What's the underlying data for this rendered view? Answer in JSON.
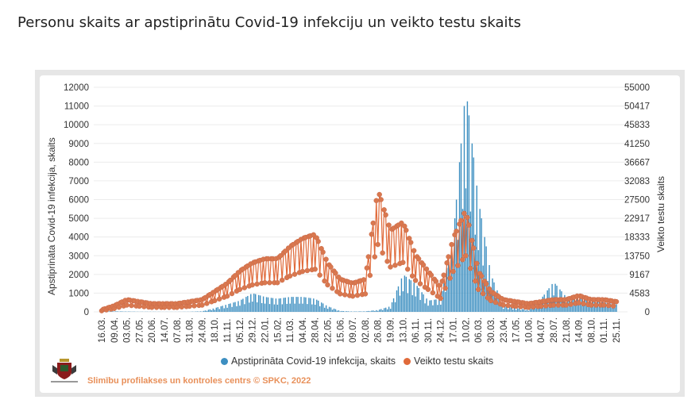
{
  "title": "Personu skaits ar apstiprinātu Covid-19 infekciju un veikto testu skaits",
  "logo_text": "Slimību profilakses un kontroles centrs",
  "credit": "Slimību profilakses un kontroles centrs © SPKC, 2022",
  "colors": {
    "cases": "#3d8fc1",
    "tests": "#e06a3a"
  },
  "chart_data": {
    "type": "bar+line",
    "title": "Personu skaits ar apstiprinātu Covid-19 infekciju un veikto testu skaits",
    "ylabel": "Apstiprināta Covid-19 infekcija, skaits",
    "y2label": "Veikto testu skaits",
    "ylim": [
      0,
      12000
    ],
    "y2lim": [
      0,
      55000
    ],
    "yticks": [
      "0",
      "1000",
      "2000",
      "3000",
      "4000",
      "5000",
      "6000",
      "7000",
      "8000",
      "9000",
      "10000",
      "11000",
      "12000"
    ],
    "y2ticks": [
      "0",
      "4583",
      "9167",
      "13750",
      "18333",
      "22917",
      "27500",
      "32083",
      "36667",
      "41250",
      "45833",
      "50417",
      "55000"
    ],
    "grid": true,
    "legend": "bottom",
    "categories": [
      "16.03.",
      "09.04.",
      "03.05.",
      "27.05.",
      "20.06.",
      "14.07.",
      "07.08.",
      "31.08.",
      "24.09.",
      "18.10.",
      "11.11.",
      "05.12.",
      "29.12.",
      "22.01.",
      "15.02.",
      "11.03.",
      "04.04.",
      "28.04.",
      "22.05.",
      "15.06.",
      "09.07.",
      "02.08.",
      "26.08.",
      "19.09.",
      "13.10.",
      "06.11.",
      "30.11.",
      "24.12.",
      "17.01.",
      "10.02.",
      "06.03.",
      "30.03.",
      "23.04.",
      "17.05.",
      "10.06.",
      "04.07.",
      "28.07.",
      "21.08.",
      "14.09.",
      "08.10.",
      "01.11.",
      "25.11."
    ],
    "series": [
      {
        "name": "Apstiprināta Covid-19 infekcija, skaits",
        "type": "bar",
        "axis": "left",
        "values": [
          20,
          30,
          20,
          10,
          10,
          5,
          5,
          10,
          30,
          200,
          400,
          600,
          1000,
          800,
          700,
          800,
          800,
          700,
          300,
          50,
          20,
          30,
          100,
          300,
          2000,
          1500,
          600,
          700,
          4000,
          12000,
          6000,
          2000,
          300,
          200,
          100,
          700,
          1600,
          800,
          800,
          700,
          500,
          400
        ]
      },
      {
        "name": "Veikto testu skaits",
        "type": "line",
        "axis": "right",
        "values": [
          500,
          1500,
          3000,
          2500,
          2000,
          2000,
          2000,
          2500,
          3000,
          5000,
          7000,
          10000,
          12000,
          13000,
          13000,
          16000,
          18000,
          19000,
          12000,
          8000,
          7000,
          8000,
          30000,
          20000,
          22000,
          14000,
          10000,
          6000,
          18000,
          25000,
          10000,
          5000,
          3000,
          2500,
          2000,
          2500,
          3000,
          3000,
          4000,
          3000,
          3000,
          2500
        ]
      }
    ]
  },
  "legend": {
    "cases": "Apstiprināta Covid-19 infekcija, skaits",
    "tests": "Veikto testu skaits"
  }
}
